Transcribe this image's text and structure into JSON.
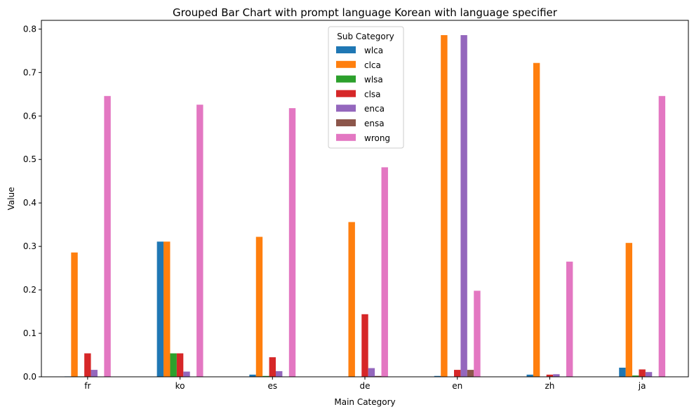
{
  "chart_data": {
    "type": "bar",
    "title": "Grouped Bar Chart with prompt language Korean with language specifier",
    "xlabel": "Main Category",
    "ylabel": "Value",
    "ylim": [
      0,
      0.82
    ],
    "yticks": [
      "0.0",
      "0.1",
      "0.2",
      "0.3",
      "0.4",
      "0.5",
      "0.6",
      "0.7",
      "0.8"
    ],
    "categories": [
      "fr",
      "ko",
      "es",
      "de",
      "en",
      "zh",
      "ja"
    ],
    "legend_title": "Sub Category",
    "legend_position": "upper center",
    "grid": false,
    "series": [
      {
        "name": "wlca",
        "color": "#1f77b4",
        "values": [
          0.001,
          0.311,
          0.005,
          0.0,
          0.002,
          0.005,
          0.021
        ]
      },
      {
        "name": "clca",
        "color": "#ff7f0e",
        "values": [
          0.286,
          0.311,
          0.322,
          0.356,
          0.786,
          0.722,
          0.308
        ]
      },
      {
        "name": "wlsa",
        "color": "#2ca02c",
        "values": [
          0.001,
          0.054,
          0.002,
          0.0,
          0.0,
          0.0,
          0.003
        ]
      },
      {
        "name": "clsa",
        "color": "#d62728",
        "values": [
          0.054,
          0.054,
          0.045,
          0.144,
          0.016,
          0.005,
          0.017
        ]
      },
      {
        "name": "enca",
        "color": "#9467bd",
        "values": [
          0.016,
          0.012,
          0.013,
          0.02,
          0.786,
          0.006,
          0.011
        ]
      },
      {
        "name": "ensa",
        "color": "#8c564b",
        "values": [
          0.0,
          0.0,
          0.0,
          0.002,
          0.016,
          0.0,
          0.0
        ]
      },
      {
        "name": "wrong",
        "color": "#e377c2",
        "values": [
          0.646,
          0.626,
          0.618,
          0.482,
          0.198,
          0.265,
          0.646
        ]
      }
    ]
  }
}
